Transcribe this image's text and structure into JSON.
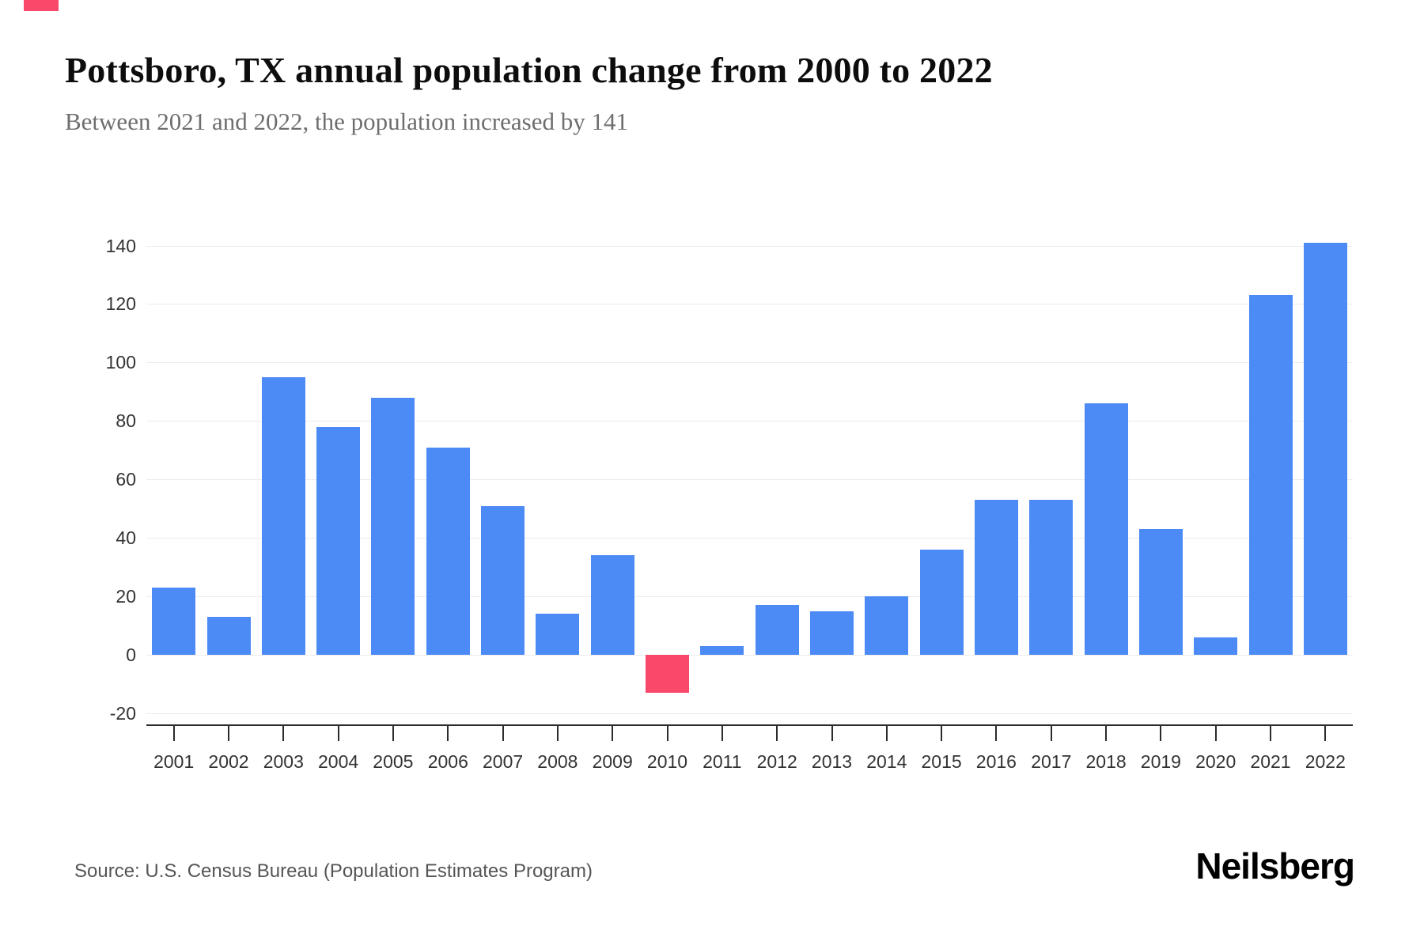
{
  "header": {
    "title": "Pottsboro, TX annual population change from 2000 to 2022",
    "subtitle": "Between 2021 and 2022, the population increased by 141"
  },
  "footer": {
    "source": "Source: U.S. Census Bureau (Population Estimates Program)",
    "brand": "Neilsberg"
  },
  "chart_data": {
    "type": "bar",
    "title": "Pottsboro, TX annual population change from 2000 to 2022",
    "categories": [
      "2001",
      "2002",
      "2003",
      "2004",
      "2005",
      "2006",
      "2007",
      "2008",
      "2009",
      "2010",
      "2011",
      "2012",
      "2013",
      "2014",
      "2015",
      "2016",
      "2017",
      "2018",
      "2019",
      "2020",
      "2021",
      "2022"
    ],
    "values": [
      23,
      13,
      95,
      78,
      88,
      71,
      51,
      14,
      34,
      -13,
      3,
      17,
      15,
      20,
      36,
      53,
      53,
      86,
      43,
      6,
      123,
      141
    ],
    "xlabel": "",
    "ylabel": "",
    "ylim": [
      -20,
      145
    ],
    "yticks": [
      -20,
      0,
      20,
      40,
      60,
      80,
      100,
      120,
      140
    ],
    "grid": true,
    "legend": "none",
    "bar_color": "#4C8BF5",
    "negative_bar_color": "#F9496B",
    "gridline_color": "#ececec",
    "axis_color": "#2b2b2b"
  }
}
